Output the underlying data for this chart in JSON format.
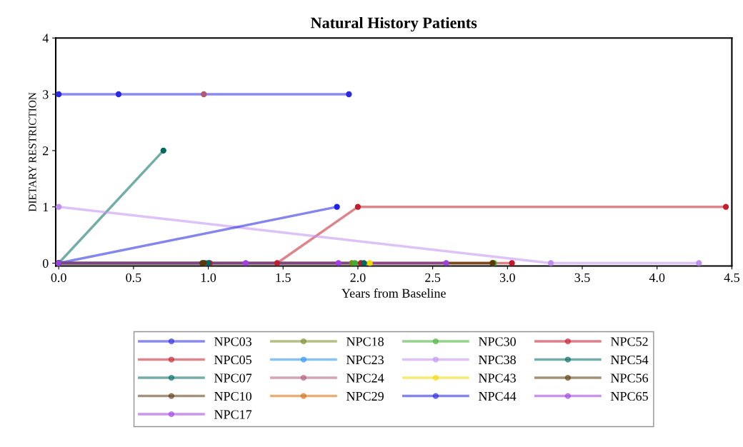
{
  "chart_data": {
    "type": "line",
    "title": "Natural History Patients",
    "xlabel": "Years from Baseline",
    "ylabel": "DIETARY RESTRICTION",
    "xlim": [
      -0.02,
      4.5
    ],
    "ylim": [
      -0.05,
      4
    ],
    "xticks": [
      {
        "value": 0,
        "label": "0.0"
      },
      {
        "value": 0.5,
        "label": "0.5"
      },
      {
        "value": 1,
        "label": "1.0"
      },
      {
        "value": 1.5,
        "label": "1.5"
      },
      {
        "value": 2,
        "label": "2.0"
      },
      {
        "value": 2.5,
        "label": "2.5"
      },
      {
        "value": 3,
        "label": "3.0"
      },
      {
        "value": 3.5,
        "label": "3.5"
      },
      {
        "value": 4,
        "label": "4.0"
      },
      {
        "value": 4.5,
        "label": "4.5"
      }
    ],
    "yticks": [
      0,
      1,
      2,
      3,
      4
    ],
    "grid": false,
    "legend": "bottom",
    "marker": "circle",
    "line_style": "solid",
    "series": [
      {
        "name": "NPC03",
        "color": "#2a2ae0",
        "x": [
          0,
          0.4,
          1.94
        ],
        "values": [
          3,
          3,
          3
        ]
      },
      {
        "name": "NPC05",
        "color": "#c0202e",
        "x": [
          1.46,
          2.0,
          4.46
        ],
        "values": [
          0,
          1,
          1
        ]
      },
      {
        "name": "NPC07",
        "color": "#006a5e",
        "x": [
          0,
          0.7
        ],
        "values": [
          0,
          2
        ]
      },
      {
        "name": "NPC10",
        "color": "#5a3a10",
        "x": [
          0,
          0.96
        ],
        "values": [
          0,
          0
        ]
      },
      {
        "name": "NPC17",
        "color": "#a040e0",
        "x": [
          0,
          1.25,
          1.87
        ],
        "values": [
          0,
          0,
          0
        ]
      },
      {
        "name": "NPC18",
        "color": "#7a8a20",
        "x": [
          0,
          1.96
        ],
        "values": [
          0,
          0
        ]
      },
      {
        "name": "NPC23",
        "color": "#2a90f0",
        "x": [
          0,
          0.98
        ],
        "values": [
          0,
          0
        ]
      },
      {
        "name": "NPC24",
        "color": "#b05878",
        "x": [
          0.97
        ],
        "values": [
          3
        ]
      },
      {
        "name": "NPC29",
        "color": "#d07010",
        "x": [
          0,
          2.9
        ],
        "values": [
          0,
          0
        ]
      },
      {
        "name": "NPC30",
        "color": "#40b030",
        "x": [
          1.98,
          2.91
        ],
        "values": [
          0,
          0
        ]
      },
      {
        "name": "NPC38",
        "color": "#c090f0",
        "x": [
          0,
          3.29,
          4.28
        ],
        "values": [
          1,
          0,
          0
        ]
      },
      {
        "name": "NPC43",
        "color": "#f0d800",
        "x": [
          0,
          2.08
        ],
        "values": [
          0,
          0
        ]
      },
      {
        "name": "NPC44",
        "color": "#2020e0",
        "x": [
          0,
          1.86
        ],
        "values": [
          0,
          1
        ]
      },
      {
        "name": "NPC52",
        "color": "#c0182a",
        "x": [
          0,
          1.01,
          2.02,
          3.03
        ],
        "values": [
          0,
          0,
          0,
          0
        ]
      },
      {
        "name": "NPC54",
        "color": "#006860",
        "x": [
          0,
          1.0,
          2.04
        ],
        "values": [
          0,
          0,
          0
        ]
      },
      {
        "name": "NPC56",
        "color": "#5a3808",
        "x": [
          0,
          0.97,
          2.9
        ],
        "values": [
          0,
          0,
          0
        ]
      },
      {
        "name": "NPC65",
        "color": "#9a40e0",
        "x": [
          0,
          2.59
        ],
        "values": [
          0,
          0
        ]
      }
    ]
  }
}
